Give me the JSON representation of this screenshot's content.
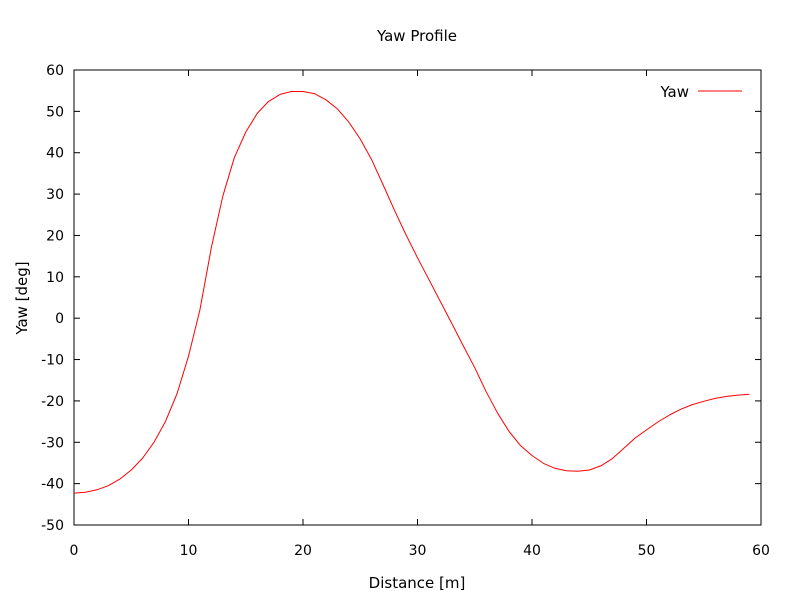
{
  "chart_data": {
    "type": "line",
    "title": "Yaw Profile",
    "xlabel": "Distance [m]",
    "ylabel": "Yaw [deg]",
    "xlim": [
      0,
      60
    ],
    "ylim": [
      -50,
      60
    ],
    "x_ticks": [
      0,
      10,
      20,
      30,
      40,
      50,
      60
    ],
    "y_ticks": [
      -50,
      -40,
      -30,
      -20,
      -10,
      0,
      10,
      20,
      30,
      40,
      50,
      60
    ],
    "grid": false,
    "legend_position": "top-right",
    "series": [
      {
        "name": "Yaw",
        "color": "#ff0000",
        "x": [
          0,
          1,
          2,
          3,
          4,
          5,
          6,
          7,
          8,
          9,
          10,
          11,
          12,
          13,
          14,
          15,
          16,
          17,
          18,
          19,
          20,
          21,
          22,
          23,
          24,
          25,
          26,
          27,
          28,
          29,
          30,
          31,
          32,
          33,
          34,
          35,
          36,
          37,
          38,
          39,
          40,
          41,
          42,
          43,
          44,
          45,
          46,
          47,
          48,
          49,
          50,
          51,
          52,
          53,
          54,
          55,
          56,
          57,
          58,
          59
        ],
        "y": [
          -42.3,
          -42.1,
          -41.5,
          -40.5,
          -38.9,
          -36.7,
          -33.8,
          -29.9,
          -24.9,
          -18.2,
          -9.2,
          2.0,
          17.1,
          29.5,
          38.8,
          45.0,
          49.5,
          52.4,
          54.1,
          54.8,
          54.8,
          54.3,
          52.8,
          50.6,
          47.4,
          43.3,
          38.3,
          32.2,
          26.0,
          20.1,
          14.6,
          9.3,
          4.0,
          -1.3,
          -6.7,
          -12.0,
          -17.8,
          -23.0,
          -27.4,
          -30.8,
          -33.2,
          -35.1,
          -36.3,
          -36.9,
          -37.0,
          -36.7,
          -35.7,
          -34.0,
          -31.5,
          -29.0,
          -27.0,
          -25.1,
          -23.4,
          -22.0,
          -20.9,
          -20.1,
          -19.4,
          -18.9,
          -18.6,
          -18.4
        ]
      }
    ]
  }
}
